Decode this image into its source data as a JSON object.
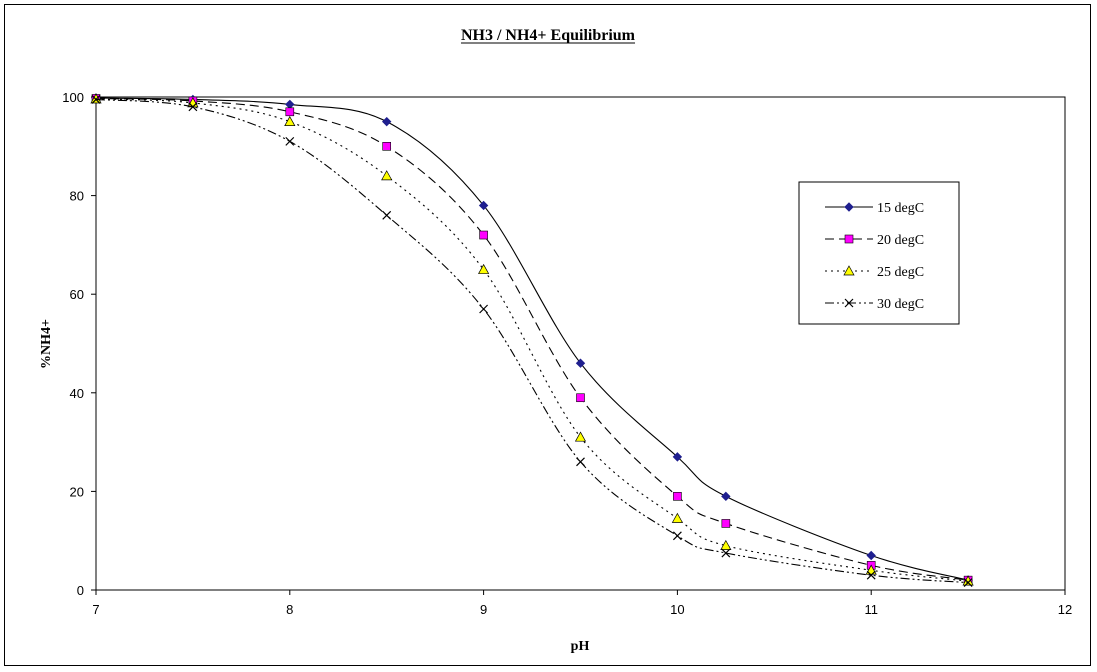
{
  "chart_data": {
    "type": "line",
    "title": "NH3 / NH4+ Equilibrium",
    "xlabel": "pH",
    "ylabel": "%NH4+",
    "xlim": [
      7,
      12
    ],
    "ylim": [
      0,
      100
    ],
    "xticks": [
      7,
      8,
      9,
      10,
      11,
      12
    ],
    "yticks": [
      0,
      20,
      40,
      60,
      80,
      100
    ],
    "grid": false,
    "legend_position": "right",
    "series": [
      {
        "name": "15 degC",
        "line_style": "solid",
        "marker": "diamond",
        "marker_color": "#1f1f8f",
        "x": [
          7,
          7.5,
          8,
          8.5,
          9,
          9.5,
          10,
          10.25,
          11,
          11.5
        ],
        "values": [
          99.8,
          99.5,
          98.5,
          95,
          78,
          46,
          27,
          19,
          7,
          2
        ]
      },
      {
        "name": "20 degC",
        "line_style": "dashed",
        "marker": "square",
        "marker_color": "#ff00ff",
        "x": [
          7,
          7.5,
          8,
          8.5,
          9,
          9.5,
          10,
          10.25,
          11,
          11.5
        ],
        "values": [
          99.7,
          99.2,
          97,
          90,
          72,
          39,
          19,
          13.5,
          5,
          2
        ]
      },
      {
        "name": "25 degC",
        "line_style": "dotted",
        "marker": "triangle",
        "marker_color": "#ffff00",
        "x": [
          7,
          7.5,
          8,
          8.5,
          9,
          9.5,
          10,
          10.25,
          11,
          11.5
        ],
        "values": [
          99.6,
          98.8,
          95,
          84,
          65,
          31,
          14.5,
          9,
          4,
          1.8
        ]
      },
      {
        "name": "30 degC",
        "line_style": "dash-dot-dot",
        "marker": "x",
        "marker_color": "#000000",
        "x": [
          7,
          7.5,
          8,
          8.5,
          9,
          9.5,
          10,
          10.25,
          11,
          11.5
        ],
        "values": [
          99.5,
          98,
          91,
          76,
          57,
          26,
          11,
          7.5,
          3,
          1.5
        ]
      }
    ]
  }
}
